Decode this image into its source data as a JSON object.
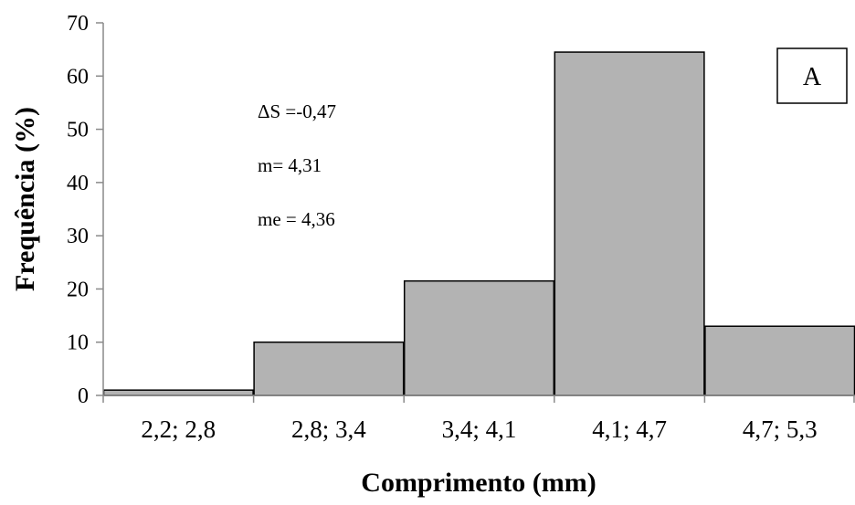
{
  "chart_data": {
    "type": "bar",
    "categories": [
      "2,2; 2,8",
      "2,8; 3,4",
      "3,4; 4,1",
      "4,1; 4,7",
      "4,7; 5,3"
    ],
    "values": [
      1,
      10,
      21.5,
      64.5,
      13
    ],
    "xlabel": "Comprimento (mm)",
    "ylabel": "Frequência (%)",
    "ylim": [
      0,
      70
    ],
    "yticks": [
      0,
      10,
      20,
      30,
      40,
      50,
      60,
      70
    ],
    "grid": false,
    "legend": "none",
    "bar_color": "#b3b3b3",
    "bar_edge_color": "#000000",
    "annotations": [
      "ΔS =-0,47",
      "m= 4,31",
      "me = 4,36"
    ],
    "panel_label": "A"
  }
}
